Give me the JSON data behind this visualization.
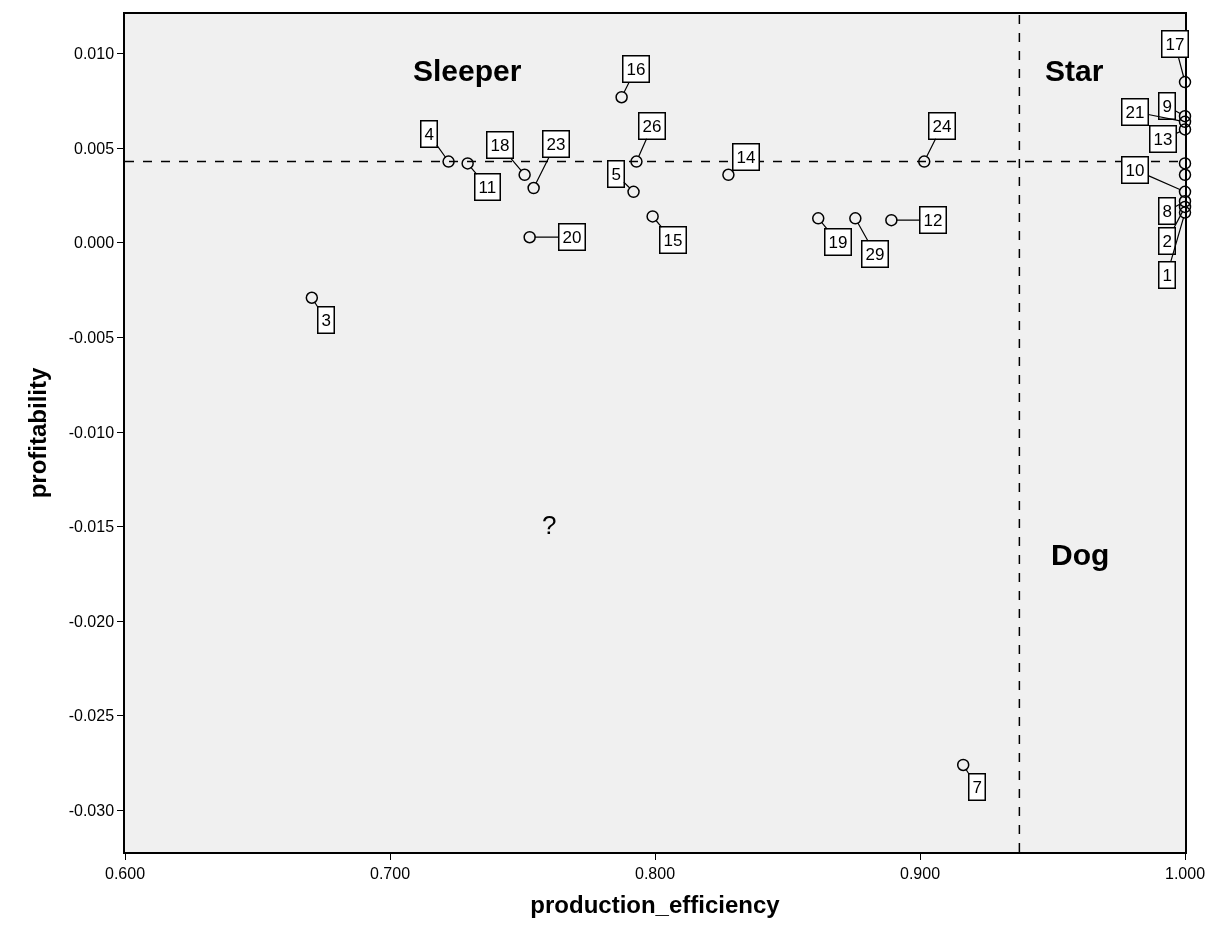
{
  "chart_data": {
    "type": "scatter",
    "xlabel": "production_efficiency",
    "ylabel": "profitability",
    "x": [
      0.6705,
      0.9163,
      0.7221,
      0.7293,
      0.7508,
      0.7542,
      0.7527,
      0.7874,
      0.793,
      0.7919,
      0.7991,
      0.8277,
      0.9016,
      0.8616,
      0.8756,
      0.8892,
      1.0,
      1.0,
      1.0,
      1.0,
      1.0,
      1.0,
      1.0,
      1.0,
      1.0,
      1.0
    ],
    "values": [
      -0.0029,
      -0.0276,
      0.0043,
      0.0042,
      0.0036,
      0.0029,
      0.0003,
      0.0077,
      0.0043,
      0.0027,
      0.0014,
      0.0036,
      0.0043,
      0.0013,
      0.0013,
      0.0012,
      0.0085,
      0.0067,
      0.0064,
      0.006,
      0.0042,
      0.0036,
      0.0027,
      0.0022,
      0.0019,
      0.0016
    ],
    "color": "#000000",
    "marker": "circle",
    "grid": false,
    "legend": false,
    "xlim": [
      0.6,
      1.0
    ],
    "xticks": [
      {
        "value": 0.6,
        "label": "0.600"
      },
      {
        "value": 0.7,
        "label": "0.700"
      },
      {
        "value": 0.8,
        "label": "0.800"
      },
      {
        "value": 0.9,
        "label": "0.900"
      },
      {
        "value": 1.0,
        "label": "1.000"
      }
    ],
    "ylim": [
      -0.0322,
      0.0121
    ],
    "yticks": [
      {
        "value": -0.03,
        "label": "-0.030"
      },
      {
        "value": -0.025,
        "label": "-0.025"
      },
      {
        "value": -0.02,
        "label": "-0.020"
      },
      {
        "value": -0.015,
        "label": "-0.015"
      },
      {
        "value": -0.01,
        "label": "-0.010"
      },
      {
        "value": -0.005,
        "label": "-0.005"
      },
      {
        "value": 0.0,
        "label": "0.000"
      },
      {
        "value": 0.005,
        "label": "0.005"
      },
      {
        "value": 0.01,
        "label": "0.010"
      }
    ],
    "ref_lines": [
      {
        "axis": "x",
        "value": 0.9375,
        "line_style": "dashed"
      },
      {
        "axis": "y",
        "value": 0.0043,
        "line_style": "dashed"
      }
    ],
    "annotations": [
      "Sleeper",
      "Star",
      "?",
      "Dog",
      {
        "text": "3",
        "x": 0.6705,
        "y": -0.0029
      },
      {
        "text": "7",
        "x": 0.9163,
        "y": -0.0276
      },
      {
        "text": "4",
        "x": 0.7221,
        "y": 0.0043
      },
      {
        "text": "11",
        "x": 0.7293,
        "y": 0.0042
      },
      {
        "text": "18",
        "x": 0.7508,
        "y": 0.0036
      },
      {
        "text": "23",
        "x": 0.7542,
        "y": 0.0029
      },
      {
        "text": "20",
        "x": 0.7527,
        "y": 0.0003
      },
      {
        "text": "16",
        "x": 0.7874,
        "y": 0.0077
      },
      {
        "text": "26",
        "x": 0.793,
        "y": 0.0043
      },
      {
        "text": "5",
        "x": 0.7919,
        "y": 0.0027
      },
      {
        "text": "15",
        "x": 0.7991,
        "y": 0.0014
      },
      {
        "text": "14",
        "x": 0.8277,
        "y": 0.0036
      },
      {
        "text": "24",
        "x": 0.9016,
        "y": 0.0043
      },
      {
        "text": "19",
        "x": 0.8616,
        "y": 0.0013
      },
      {
        "text": "29",
        "x": 0.8756,
        "y": 0.0013
      },
      {
        "text": "12",
        "x": 0.8892,
        "y": 0.0012
      },
      {
        "text": "17",
        "x": 1.0,
        "y": 0.0085
      },
      {
        "text": "9",
        "x": 1.0,
        "y": 0.0067
      },
      {
        "text": "21",
        "x": 1.0,
        "y": 0.0064
      },
      {
        "text": "13",
        "x": 1.0,
        "y": 0.006
      },
      {
        "text": "10",
        "x": 1.0,
        "y": 0.0027
      },
      {
        "text": "8",
        "x": 1.0,
        "y": 0.0022
      },
      {
        "text": "2",
        "x": 1.0,
        "y": 0.0019
      },
      {
        "text": "1",
        "x": 1.0,
        "y": 0.0016
      }
    ]
  }
}
